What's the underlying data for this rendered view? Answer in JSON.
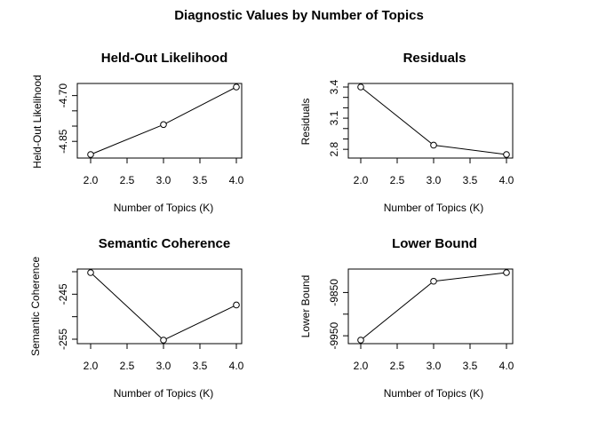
{
  "figure": {
    "title": "Diagnostic Values by Number of Topics"
  },
  "chart_data": [
    {
      "type": "line",
      "title": "Held-Out Likelihood",
      "xlabel": "Number of Topics (K)",
      "ylabel": "Held-Out Likelihood",
      "x": [
        2.0,
        3.0,
        4.0
      ],
      "values": [
        -4.893,
        -4.795,
        -4.672
      ],
      "xlim": [
        2.0,
        4.0
      ],
      "ylim": [
        -4.893,
        -4.672
      ],
      "xticks": [
        2.0,
        2.5,
        3.0,
        3.5,
        4.0
      ],
      "xtick_labels": [
        "2.0",
        "2.5",
        "3.0",
        "3.5",
        "4.0"
      ],
      "yticks": [
        -4.85,
        -4.8,
        -4.75,
        -4.7
      ],
      "ytick_labels": [
        "-4.85",
        "",
        "",
        "-4.70"
      ],
      "grid": false,
      "markers": "open-circle"
    },
    {
      "type": "line",
      "title": "Residuals",
      "xlabel": "Number of Topics (K)",
      "ylabel": "Residuals",
      "x": [
        2.0,
        3.0,
        4.0
      ],
      "values": [
        3.4,
        2.84,
        2.75
      ],
      "xlim": [
        2.0,
        4.0
      ],
      "ylim": [
        2.75,
        3.4
      ],
      "xticks": [
        2.0,
        2.5,
        3.0,
        3.5,
        4.0
      ],
      "xtick_labels": [
        "2.0",
        "2.5",
        "3.0",
        "3.5",
        "4.0"
      ],
      "yticks": [
        2.8,
        2.9,
        3.0,
        3.1,
        3.2,
        3.3,
        3.4
      ],
      "ytick_labels": [
        "2.8",
        "",
        "",
        "3.1",
        "",
        "",
        "3.4"
      ],
      "grid": false,
      "markers": "open-circle"
    },
    {
      "type": "line",
      "title": "Semantic Coherence",
      "xlabel": "Number of Topics (K)",
      "ylabel": "Semantic Coherence",
      "x": [
        2.0,
        3.0,
        4.0
      ],
      "values": [
        -240.2,
        -255.2,
        -247.4
      ],
      "xlim": [
        2.0,
        4.0
      ],
      "ylim": [
        -255.2,
        -240.2
      ],
      "xticks": [
        2.0,
        2.5,
        3.0,
        3.5,
        4.0
      ],
      "xtick_labels": [
        "2.0",
        "2.5",
        "3.0",
        "3.5",
        "4.0"
      ],
      "yticks": [
        -255,
        -250,
        -245,
        -240
      ],
      "ytick_labels": [
        "-255",
        "",
        "-245",
        ""
      ],
      "grid": false,
      "markers": "open-circle"
    },
    {
      "type": "line",
      "title": "Lower Bound",
      "xlabel": "Number of Topics (K)",
      "ylabel": "Lower Bound",
      "x": [
        2.0,
        3.0,
        4.0
      ],
      "values": [
        -9960,
        -9824,
        -9804
      ],
      "xlim": [
        2.0,
        4.0
      ],
      "ylim": [
        -9960,
        -9804
      ],
      "xticks": [
        2.0,
        2.5,
        3.0,
        3.5,
        4.0
      ],
      "xtick_labels": [
        "2.0",
        "2.5",
        "3.0",
        "3.5",
        "4.0"
      ],
      "yticks": [
        -9950,
        -9900,
        -9850
      ],
      "ytick_labels": [
        "-9950",
        "",
        "-9850"
      ],
      "grid": false,
      "markers": "open-circle"
    }
  ]
}
